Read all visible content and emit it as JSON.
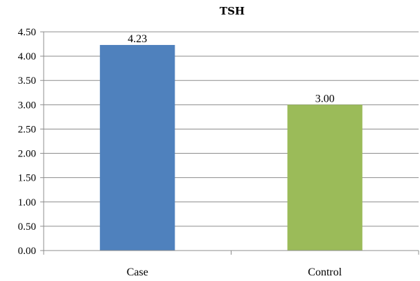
{
  "chart_data": {
    "type": "bar",
    "title": "TSH",
    "xlabel": "",
    "ylabel": "",
    "categories": [
      "Case",
      "Control"
    ],
    "values": [
      4.23,
      3.0
    ],
    "data_labels": [
      "4.23",
      "3.00"
    ],
    "ylim": [
      0,
      4.5
    ],
    "yticks": [
      "0.00",
      "0.50",
      "1.00",
      "1.50",
      "2.00",
      "2.50",
      "3.00",
      "3.50",
      "4.00",
      "4.50"
    ],
    "grid": true,
    "legend": "none",
    "colors": [
      "#4f81bd",
      "#9bbb59"
    ]
  }
}
